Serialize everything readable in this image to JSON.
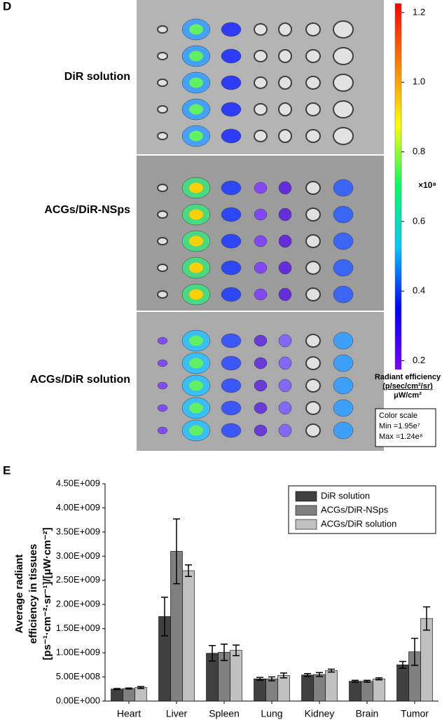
{
  "panel_d": {
    "label": "D",
    "rows": [
      "DiR solution",
      "ACGs/DiR-NSps",
      "ACGs/DiR solution"
    ],
    "colorbar": {
      "lim": [
        0.175,
        1.226
      ],
      "ticks": [
        0.2,
        0.4,
        0.6,
        0.8,
        {
          "value": 1,
          "label": "1.0"
        },
        1.2
      ],
      "colors": [
        "#7a00ff",
        "#0000ff",
        "#00c8ff",
        "#00ff60",
        "#ffff00",
        "#ff8000",
        "#ff0000"
      ],
      "multiplier": "×10⁸",
      "title": [
        "Radiant efficiency",
        "(p/sec/cm²/sr)",
        "μW/cm²"
      ],
      "box": [
        "Color scale",
        "Min =1.95e⁷",
        "Max =1.24e⁸"
      ]
    }
  },
  "chart_data": {
    "type": "bar",
    "panel_label": "E",
    "categories": [
      "Heart",
      "Liver",
      "Spleen",
      "Lung",
      "Kidney",
      "Brain",
      "Tumor"
    ],
    "series": [
      {
        "name": "DiR solution",
        "color": "#404040",
        "values": [
          250000000,
          1750000000,
          990000000,
          460000000,
          540000000,
          410000000,
          750000000
        ],
        "errors": [
          10000000,
          400000000,
          160000000,
          30000000,
          30000000,
          20000000,
          70000000
        ]
      },
      {
        "name": "ACGs/DiR-NSps",
        "color": "#808080",
        "values": [
          260000000,
          3100000000,
          1010000000,
          460000000,
          550000000,
          410000000,
          1020000000
        ],
        "errors": [
          10000000,
          670000000,
          170000000,
          40000000,
          40000000,
          20000000,
          280000000
        ]
      },
      {
        "name": "ACGs/DiR solution",
        "color": "#c0c0c0",
        "values": [
          280000000,
          2700000000,
          1050000000,
          530000000,
          630000000,
          460000000,
          1710000000
        ],
        "errors": [
          20000000,
          120000000,
          110000000,
          50000000,
          30000000,
          20000000,
          240000000
        ]
      }
    ],
    "ylim": [
      0,
      4500000000
    ],
    "yticks": [
      {
        "value": 0,
        "label": "0.00E+000"
      },
      {
        "value": 500000000,
        "label": "5.00E+008"
      },
      {
        "value": 1000000000,
        "label": "1.00E+009"
      },
      {
        "value": 1500000000,
        "label": "1.50E+009"
      },
      {
        "value": 2000000000,
        "label": "2.00E+009"
      },
      {
        "value": 2500000000,
        "label": "2.50E+009"
      },
      {
        "value": 3000000000,
        "label": "3.00E+009"
      },
      {
        "value": 3500000000,
        "label": "3.50E+009"
      },
      {
        "value": 4000000000,
        "label": "4.00E+009"
      },
      {
        "value": 4500000000,
        "label": "4.50E+009"
      }
    ],
    "ylabel": [
      "Average radiant",
      "efficiency in tissues",
      "[ps⁻¹·cm⁻²·sr⁻¹]/[μW·cm⁻²]"
    ],
    "legend": "upper right"
  }
}
